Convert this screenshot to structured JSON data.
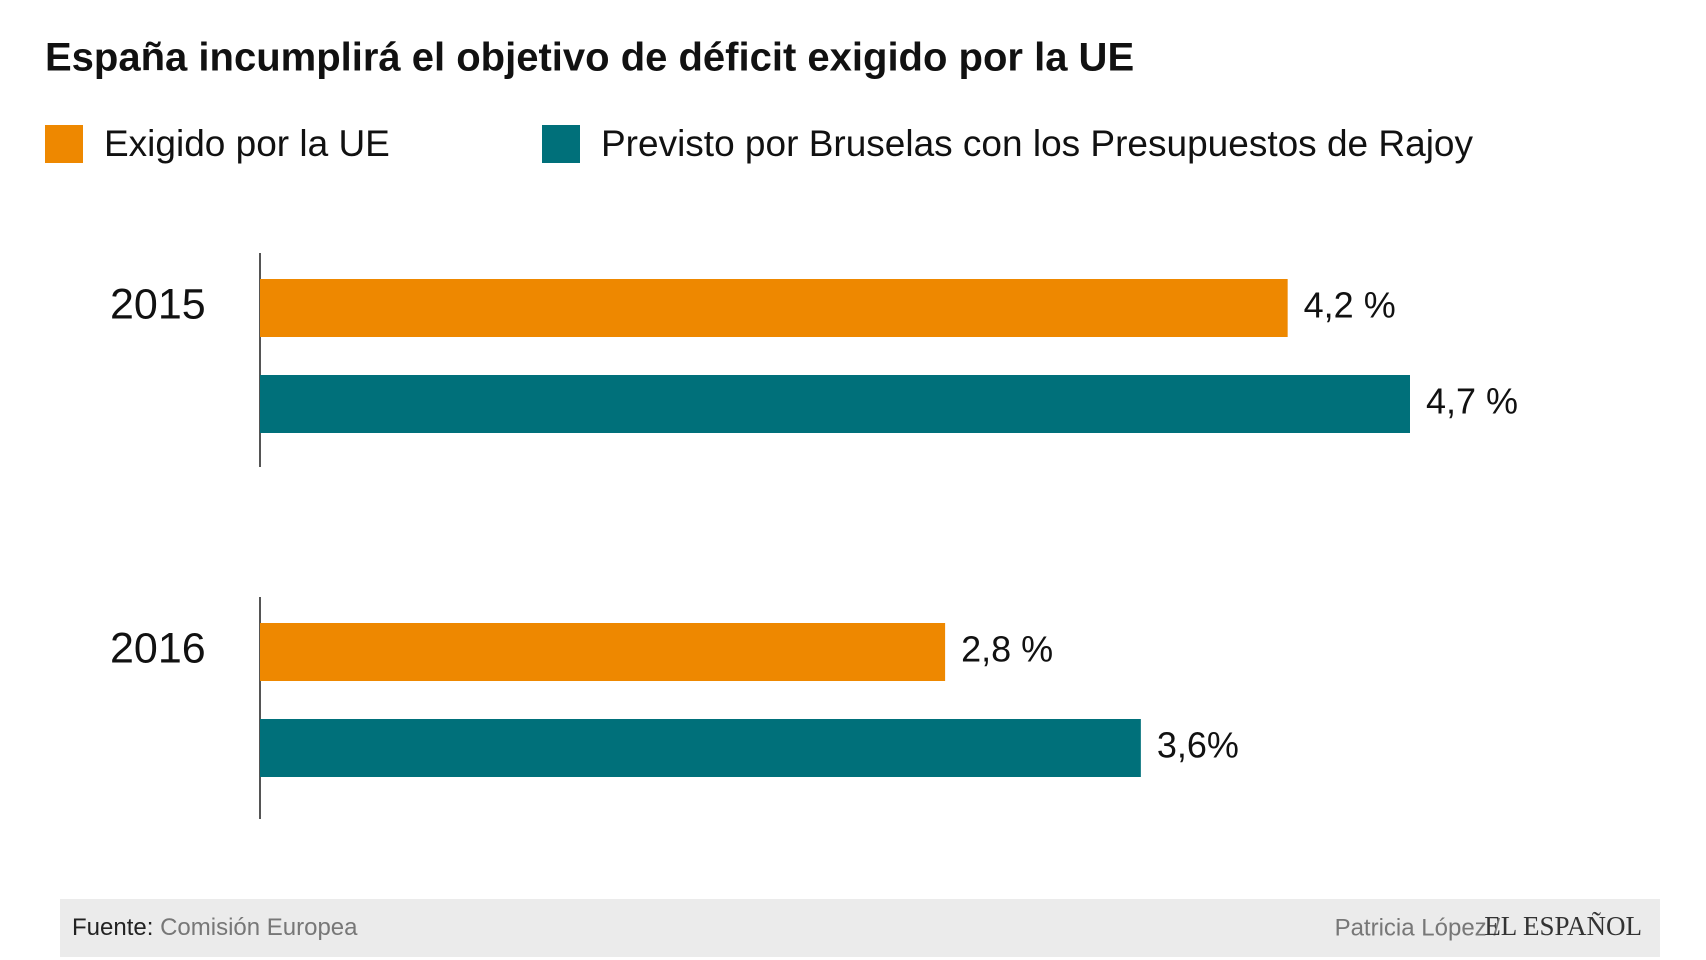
{
  "chart_data": {
    "type": "bar",
    "orientation": "horizontal",
    "title": "España incumplirá el objetivo de déficit exigido por la UE",
    "categories": [
      "2015",
      "2016"
    ],
    "series": [
      {
        "name": "Exigido por la UE",
        "color": "#ee8800",
        "values": [
          4.2,
          2.8
        ],
        "value_labels": [
          "4,2 %",
          "2,8 %"
        ]
      },
      {
        "name": "Previsto por Bruselas con los Presupuestos de Rajoy",
        "color": "#00707a",
        "values": [
          4.7,
          3.6
        ],
        "value_labels": [
          "4,7 %",
          "3,6%"
        ]
      }
    ]
  },
  "footer": {
    "source_label": "Fuente:",
    "source": "Comisión Europea",
    "author": "Patricia López /",
    "brand": "EL ESPAÑOL"
  }
}
